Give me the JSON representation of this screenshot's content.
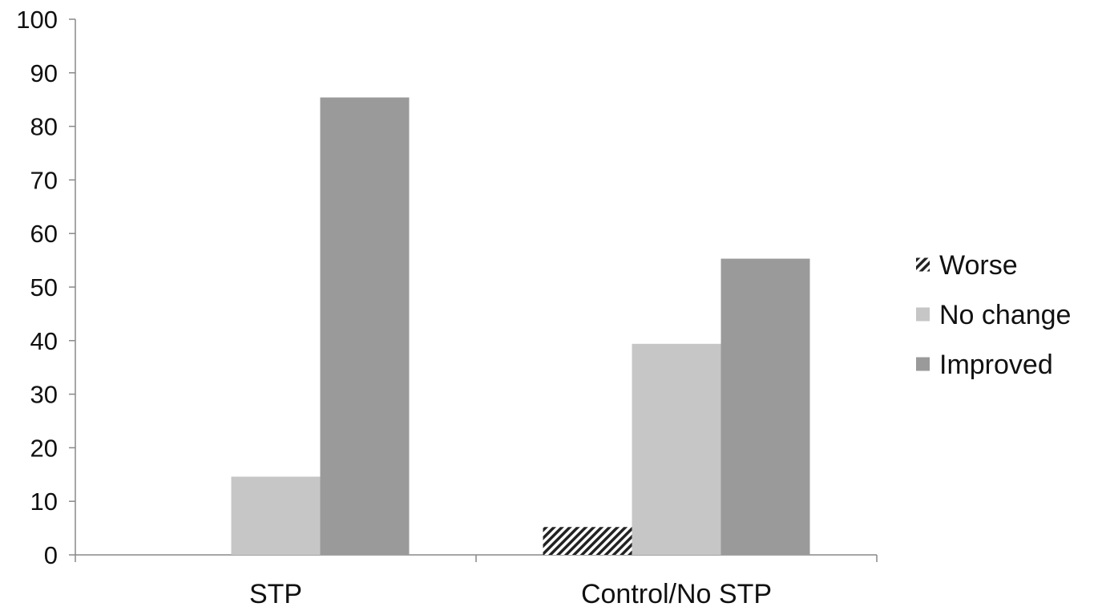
{
  "chart_data": {
    "type": "bar",
    "title": "",
    "xlabel": "",
    "ylabel": "",
    "ylim": [
      0,
      100
    ],
    "yticks": [
      0,
      10,
      20,
      30,
      40,
      50,
      60,
      70,
      80,
      90,
      100
    ],
    "categories": [
      "STP",
      "Control/No STP"
    ],
    "series": [
      {
        "name": "Worse",
        "values": [
          0,
          5.2
        ],
        "color": "#222222",
        "pattern": "diagonal-hatch"
      },
      {
        "name": "No change",
        "values": [
          14.6,
          39.4
        ],
        "color": "#c6c6c6"
      },
      {
        "name": "Improved",
        "values": [
          85.4,
          55.3
        ],
        "color": "#9a9a9a"
      }
    ],
    "legend": "right",
    "grid": false
  }
}
